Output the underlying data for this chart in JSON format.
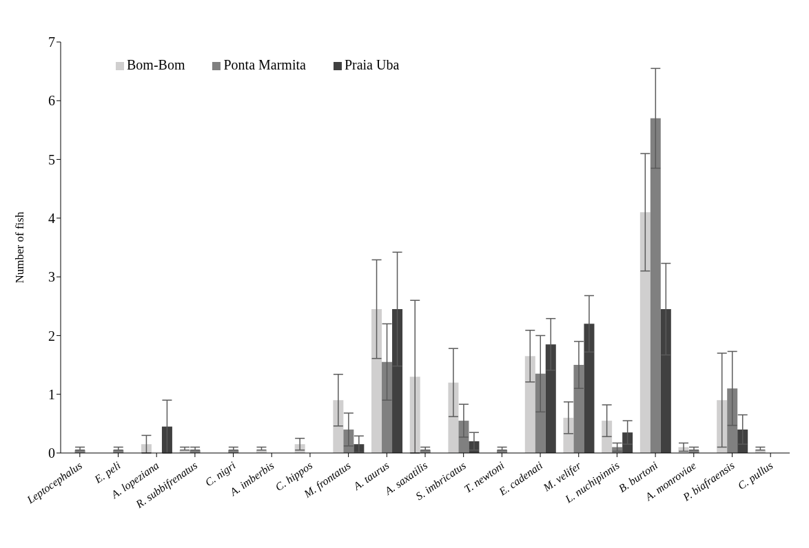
{
  "chart_data": {
    "type": "bar",
    "ylabel": "Number of fish",
    "categories": [
      "Leptocephalus",
      "E. peli",
      "A. lopeziana",
      "R. subbifrenatus",
      "C. nigri",
      "A. imberbis",
      "C. hippos",
      "M. frontatus",
      "A. taurus",
      "A. saxatilis",
      "S. imbricatus",
      "T. newtoni",
      "E. cadenati",
      "M. velifer",
      "L. nuchipinnis",
      "B. burtoni",
      "A. monroviae",
      "P. biafraensis",
      "C. pullus"
    ],
    "series": [
      {
        "name": "Bom-Bom",
        "color": "#d0cfcf",
        "values": [
          null,
          null,
          0.15,
          0.05,
          null,
          0.05,
          0.15,
          0.9,
          2.45,
          1.3,
          1.2,
          null,
          1.65,
          0.6,
          0.55,
          4.1,
          0.1,
          0.9,
          0.05
        ],
        "errors": [
          null,
          null,
          0.15,
          [
            0.05,
            0.1
          ],
          null,
          [
            0.05,
            0.1
          ],
          0.1,
          0.44,
          0.84,
          1.3,
          0.58,
          null,
          0.44,
          0.27,
          0.27,
          1.0,
          0.07,
          0.8,
          [
            0.05,
            0.1
          ]
        ]
      },
      {
        "name": "Ponta Marmita",
        "color": "#808080",
        "values": [
          0.05,
          0.05,
          null,
          0.05,
          0.05,
          null,
          null,
          0.4,
          1.55,
          0.05,
          0.55,
          0.05,
          1.35,
          1.5,
          0.1,
          5.7,
          0.05,
          1.1,
          null
        ],
        "errors": [
          [
            0.05,
            0.1
          ],
          [
            0.05,
            0.1
          ],
          null,
          [
            0.05,
            0.1
          ],
          [
            0.05,
            0.1
          ],
          null,
          null,
          0.28,
          0.65,
          [
            0.05,
            0.1
          ],
          0.28,
          [
            0.05,
            0.1
          ],
          0.65,
          0.4,
          0.07,
          0.85,
          [
            0.05,
            0.1
          ],
          0.63,
          null
        ]
      },
      {
        "name": "Praia Uba",
        "color": "#404040",
        "values": [
          null,
          null,
          0.45,
          null,
          null,
          null,
          null,
          0.15,
          2.45,
          null,
          0.2,
          null,
          1.85,
          2.2,
          0.35,
          2.45,
          null,
          0.4,
          null
        ],
        "errors": [
          null,
          null,
          0.45,
          null,
          null,
          null,
          null,
          0.14,
          0.97,
          null,
          0.15,
          null,
          0.44,
          0.48,
          0.2,
          0.78,
          null,
          0.25,
          null
        ]
      }
    ],
    "ylim": [
      0,
      7
    ],
    "yticks": [
      0,
      1,
      2,
      3,
      4,
      5,
      6,
      7
    ],
    "grid": false,
    "legend": "top left"
  }
}
